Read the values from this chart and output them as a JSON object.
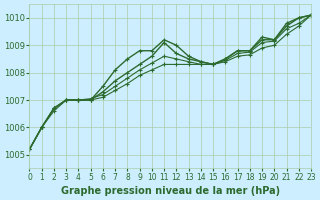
{
  "bg_color": "#cceeff",
  "grid_color": "#aaccaa",
  "line_color": "#2d6a2d",
  "marker_color": "#2d6a2d",
  "title": "Graphe pression niveau de la mer (hPa)",
  "xlabel": "",
  "ylabel": "",
  "xlim": [
    0,
    23
  ],
  "ylim": [
    1004.5,
    1010.5
  ],
  "yticks": [
    1005,
    1006,
    1007,
    1008,
    1009,
    1010
  ],
  "xticks": [
    0,
    1,
    2,
    3,
    4,
    5,
    6,
    7,
    8,
    9,
    10,
    11,
    12,
    13,
    14,
    15,
    16,
    17,
    18,
    19,
    20,
    21,
    22,
    23
  ],
  "series": [
    [
      1005.2,
      1006.0,
      1006.7,
      1007.0,
      1007.0,
      1007.0,
      1007.5,
      1008.1,
      1008.5,
      1008.8,
      1008.8,
      1009.2,
      1009.0,
      1008.6,
      1008.4,
      1008.3,
      1008.5,
      1008.8,
      1008.8,
      1009.3,
      1009.2,
      1009.8,
      1010.0,
      1010.1
    ],
    [
      1005.2,
      1006.0,
      1006.7,
      1007.0,
      1007.0,
      1007.0,
      1007.3,
      1007.7,
      1008.0,
      1008.3,
      1008.6,
      1009.1,
      1008.7,
      1008.5,
      1008.4,
      1008.3,
      1008.5,
      1008.8,
      1008.8,
      1009.2,
      1009.2,
      1009.7,
      1010.0,
      1010.1
    ],
    [
      1005.2,
      1006.0,
      1006.7,
      1007.0,
      1007.0,
      1007.05,
      1007.2,
      1007.5,
      1007.8,
      1008.1,
      1008.35,
      1008.6,
      1008.5,
      1008.4,
      1008.3,
      1008.3,
      1008.45,
      1008.7,
      1008.75,
      1009.1,
      1009.15,
      1009.6,
      1009.8,
      1010.1
    ],
    [
      1005.2,
      1006.0,
      1006.6,
      1007.0,
      1007.0,
      1007.0,
      1007.1,
      1007.35,
      1007.6,
      1007.9,
      1008.1,
      1008.3,
      1008.3,
      1008.3,
      1008.3,
      1008.3,
      1008.4,
      1008.6,
      1008.65,
      1008.9,
      1009.0,
      1009.4,
      1009.7,
      1010.1
    ]
  ]
}
